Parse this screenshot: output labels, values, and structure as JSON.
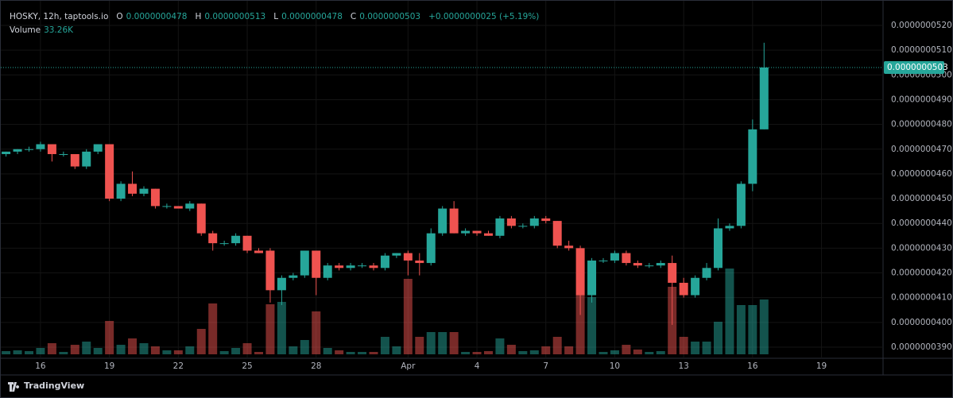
{
  "chart_data": {
    "type": "candlestick",
    "title": "HOSKY, 12h, taptools.io",
    "header": [
      {
        "key": "O",
        "value": "0.0000000478"
      },
      {
        "key": "H",
        "value": "0.0000000513"
      },
      {
        "key": "L",
        "value": "0.0000000478"
      },
      {
        "key": "C",
        "value": "0.0000000503"
      }
    ],
    "change": "+0.0000000025 (+5.19%)",
    "volume_title": "Volume",
    "volume_value": "33.26K",
    "last_price": {
      "value": 5.03e-08,
      "label": "0.0000000503"
    },
    "brand": "TradingView",
    "up_color": "#26a69a",
    "down_color": "#ef5350",
    "grid": true,
    "categories": [
      null,
      null,
      null,
      "16",
      null,
      null,
      null,
      null,
      null,
      "19",
      null,
      null,
      null,
      null,
      null,
      "22",
      null,
      null,
      null,
      null,
      null,
      "25",
      null,
      null,
      null,
      null,
      null,
      "28",
      null,
      null,
      null,
      null,
      null,
      null,
      null,
      "Apr",
      null,
      null,
      null,
      null,
      null,
      "4",
      null,
      null,
      null,
      null,
      null,
      "7",
      null,
      null,
      null,
      null,
      null,
      "10",
      null,
      null,
      null,
      null,
      null,
      "13",
      null,
      null,
      null,
      null,
      null,
      "16",
      null,
      null,
      null,
      null,
      null,
      "19"
    ],
    "open": [
      4.68e-08,
      4.69e-08,
      4.7e-08,
      4.7e-08,
      4.72e-08,
      4.68e-08,
      4.68e-08,
      4.63e-08,
      4.69e-08,
      4.72e-08,
      4.5e-08,
      4.56e-08,
      4.52e-08,
      4.54e-08,
      4.47e-08,
      4.47e-08,
      4.46e-08,
      4.48e-08,
      4.36e-08,
      4.32e-08,
      4.32e-08,
      4.35e-08,
      4.29e-08,
      4.29e-08,
      4.13e-08,
      4.18e-08,
      4.19e-08,
      4.29e-08,
      4.18e-08,
      4.23e-08,
      4.22e-08,
      4.23e-08,
      4.23e-08,
      4.22e-08,
      4.27e-08,
      4.28e-08,
      4.25e-08,
      4.24e-08,
      4.36e-08,
      4.46e-08,
      4.36e-08,
      4.37e-08,
      4.36e-08,
      4.35e-08,
      4.42e-08,
      4.39e-08,
      4.39e-08,
      4.42e-08,
      4.41e-08,
      4.31e-08,
      4.3e-08,
      4.11e-08,
      4.25e-08,
      4.25e-08,
      4.28e-08,
      4.24e-08,
      4.23e-08,
      4.23e-08,
      4.24e-08,
      4.16e-08,
      4.11e-08,
      4.18e-08,
      4.22e-08,
      4.38e-08,
      4.39e-08,
      4.56e-08,
      4.78e-08,
      null,
      null,
      null,
      null,
      null
    ],
    "high": [
      4.69e-08,
      4.7e-08,
      4.71e-08,
      4.73e-08,
      4.72e-08,
      4.69e-08,
      4.68e-08,
      4.7e-08,
      4.72e-08,
      4.72e-08,
      4.57e-08,
      4.61e-08,
      4.55e-08,
      4.54e-08,
      4.48e-08,
      4.47e-08,
      4.49e-08,
      4.48e-08,
      4.37e-08,
      4.33e-08,
      4.36e-08,
      4.35e-08,
      4.3e-08,
      4.3e-08,
      4.19e-08,
      4.2e-08,
      4.29e-08,
      4.29e-08,
      4.24e-08,
      4.24e-08,
      4.24e-08,
      4.24e-08,
      4.24e-08,
      4.28e-08,
      4.28e-08,
      4.29e-08,
      4.28e-08,
      4.38e-08,
      4.47e-08,
      4.49e-08,
      4.38e-08,
      4.37e-08,
      4.37e-08,
      4.43e-08,
      4.43e-08,
      4.4e-08,
      4.43e-08,
      4.43e-08,
      4.41e-08,
      4.33e-08,
      4.31e-08,
      4.26e-08,
      4.26e-08,
      4.29e-08,
      4.29e-08,
      4.25e-08,
      4.24e-08,
      4.25e-08,
      4.27e-08,
      4.18e-08,
      4.19e-08,
      4.24e-08,
      4.42e-08,
      4.4e-08,
      4.57e-08,
      4.82e-08,
      5.13e-08,
      null,
      null,
      null,
      null,
      null
    ],
    "low": [
      4.67e-08,
      4.68e-08,
      4.69e-08,
      4.69e-08,
      4.65e-08,
      4.67e-08,
      4.62e-08,
      4.62e-08,
      4.68e-08,
      4.49e-08,
      4.49e-08,
      4.51e-08,
      4.51e-08,
      4.46e-08,
      4.46e-08,
      4.46e-08,
      4.45e-08,
      4.35e-08,
      4.29e-08,
      4.31e-08,
      4.31e-08,
      4.28e-08,
      4.28e-08,
      4.08e-08,
      4.07e-08,
      4.17e-08,
      4.18e-08,
      4.11e-08,
      4.17e-08,
      4.21e-08,
      4.21e-08,
      4.22e-08,
      4.21e-08,
      4.21e-08,
      4.26e-08,
      4.19e-08,
      4.19e-08,
      4.23e-08,
      4.35e-08,
      4.36e-08,
      4.35e-08,
      4.35e-08,
      4.35e-08,
      4.34e-08,
      4.38e-08,
      4.38e-08,
      4.38e-08,
      4.4e-08,
      4.3e-08,
      4.29e-08,
      4.03e-08,
      4.08e-08,
      4.24e-08,
      4.24e-08,
      4.23e-08,
      4.22e-08,
      4.22e-08,
      4.22e-08,
      3.99e-08,
      4.1e-08,
      4.1e-08,
      4.17e-08,
      4.21e-08,
      4.37e-08,
      4.38e-08,
      4.53e-08,
      4.78e-08,
      null,
      null,
      null,
      null,
      null
    ],
    "close": [
      4.69e-08,
      4.7e-08,
      4.7e-08,
      4.72e-08,
      4.68e-08,
      4.68e-08,
      4.63e-08,
      4.69e-08,
      4.72e-08,
      4.5e-08,
      4.56e-08,
      4.52e-08,
      4.54e-08,
      4.47e-08,
      4.47e-08,
      4.46e-08,
      4.48e-08,
      4.36e-08,
      4.32e-08,
      4.32e-08,
      4.35e-08,
      4.29e-08,
      4.28e-08,
      4.13e-08,
      4.18e-08,
      4.19e-08,
      4.29e-08,
      4.18e-08,
      4.23e-08,
      4.22e-08,
      4.23e-08,
      4.23e-08,
      4.22e-08,
      4.27e-08,
      4.28e-08,
      4.25e-08,
      4.24e-08,
      4.36e-08,
      4.46e-08,
      4.36e-08,
      4.37e-08,
      4.36e-08,
      4.35e-08,
      4.42e-08,
      4.39e-08,
      4.39e-08,
      4.42e-08,
      4.41e-08,
      4.31e-08,
      4.3e-08,
      4.11e-08,
      4.25e-08,
      4.25e-08,
      4.28e-08,
      4.24e-08,
      4.23e-08,
      4.23e-08,
      4.24e-08,
      4.16e-08,
      4.11e-08,
      4.18e-08,
      4.22e-08,
      4.38e-08,
      4.39e-08,
      4.56e-08,
      4.78e-08,
      5.03e-08,
      null,
      null,
      null,
      null,
      null
    ],
    "volume": [
      1928,
      2410,
      1928,
      3856,
      6748,
      1446,
      5784,
      7712,
      3856,
      20244,
      5784,
      9640,
      6748,
      4820,
      2410,
      2410,
      4820,
      15424,
      30848,
      1928,
      3856,
      6748,
      1446,
      30366,
      31812,
      4820,
      8676,
      26028,
      3856,
      2410,
      1446,
      1446,
      1446,
      10604,
      4820,
      45790,
      10604,
      13496,
      13496,
      13496,
      1446,
      1446,
      1928,
      9640,
      5784,
      1928,
      2410,
      4820,
      10604,
      4820,
      36150,
      34704,
      1446,
      2410,
      5784,
      2892,
      1446,
      1928,
      40970,
      10604,
      7712,
      7712,
      19762,
      52056,
      29884,
      29884,
      33260,
      null,
      null,
      null,
      null,
      null
    ],
    "ylim": [
      3.855e-08,
      5.277e-08
    ],
    "yticks": [
      {
        "value": 3.9e-08,
        "label": "0.0000000390"
      },
      {
        "value": 4e-08,
        "label": "0.0000000400"
      },
      {
        "value": 4.1e-08,
        "label": "0.0000000410"
      },
      {
        "value": 4.2e-08,
        "label": "0.0000000420"
      },
      {
        "value": 4.3e-08,
        "label": "0.0000000430"
      },
      {
        "value": 4.4e-08,
        "label": "0.0000000440"
      },
      {
        "value": 4.5e-08,
        "label": "0.0000000450"
      },
      {
        "value": 4.6e-08,
        "label": "0.0000000460"
      },
      {
        "value": 4.7e-08,
        "label": "0.0000000470"
      },
      {
        "value": 4.8e-08,
        "label": "0.0000000480"
      },
      {
        "value": 4.9e-08,
        "label": "0.0000000490"
      },
      {
        "value": 5e-08,
        "label": "0.0000000500"
      },
      {
        "value": 5.1e-08,
        "label": "0.0000000510"
      },
      {
        "value": 5.2e-08,
        "label": "0.0000000520"
      }
    ]
  }
}
